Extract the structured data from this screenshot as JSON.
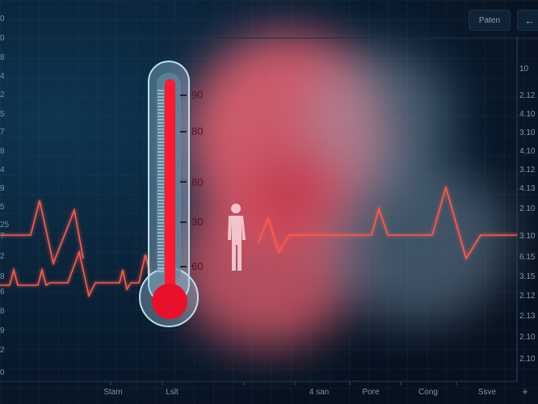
{
  "header": {
    "button_label": "Paten",
    "back_icon": "arrow-left-icon"
  },
  "left_axis": [
    "0",
    "0",
    "8",
    "4",
    "2",
    "5",
    "7",
    "8",
    "4",
    "9",
    "5",
    "25",
    "7",
    "2",
    "8",
    "6",
    "8",
    "9",
    "2",
    "0"
  ],
  "right_axis": [
    "10",
    "2.12",
    "4.10",
    "3.10",
    "4.10",
    "3.12",
    "4.13",
    "2.10",
    "3.10",
    "6.15",
    "3.15",
    "2.12",
    "2.13",
    "2.10",
    "2.10"
  ],
  "bottom_axis": [
    "Stam",
    "Lslt",
    "4 san",
    "Pore",
    "Cong",
    "Ssve"
  ],
  "bottom_add": "+",
  "thermometer": {
    "scale": [
      "90",
      "80",
      "80",
      "30",
      "60"
    ],
    "color": "#ff1a2e"
  },
  "colors": {
    "ecg": "#ff5a4a",
    "smoke_red": "#f0606e",
    "smoke_blue": "#8fa9bd"
  }
}
